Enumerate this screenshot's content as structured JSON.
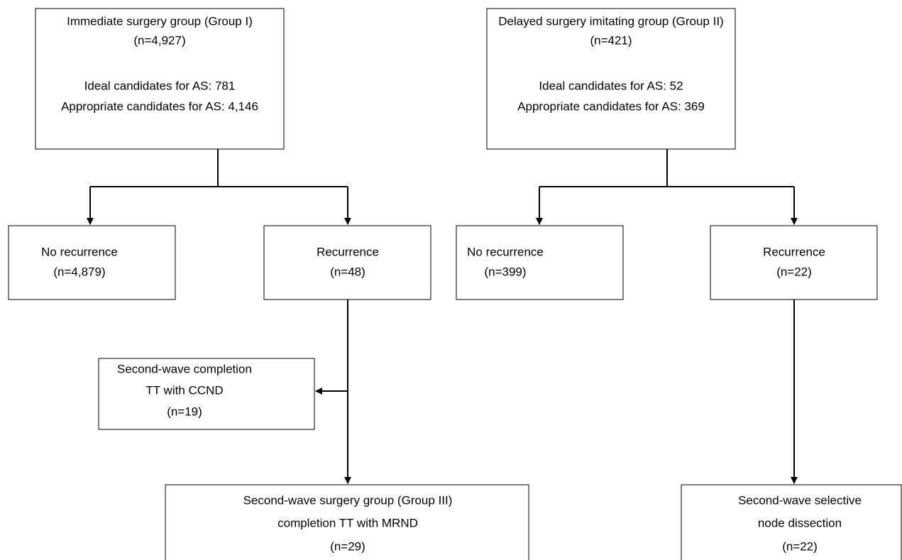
{
  "nodes": [
    {
      "lines": [
        "Immediate surgery group (Group I)",
        "(n=4,927)",
        "Ideal candidates for AS: 781",
        "Appropriate candidates for AS: 4,146"
      ]
    },
    {
      "lines": [
        "Delayed surgery imitating group (Group II)",
        "(n=421)",
        "Ideal candidates for AS: 52",
        "Appropriate candidates for AS: 369"
      ]
    },
    {
      "lines": [
        "No recurrence",
        "(n=4,879)"
      ]
    },
    {
      "lines": [
        "Recurrence",
        "(n=48)"
      ]
    },
    {
      "lines": [
        "No recurrence",
        "(n=399)"
      ]
    },
    {
      "lines": [
        "Recurrence",
        "(n=22)"
      ]
    },
    {
      "lines": [
        "Second-wave completion",
        "TT with CCND",
        "(n=19)"
      ]
    },
    {
      "lines": [
        "Second-wave surgery group (Group III)",
        "completion TT with MRND",
        "(n=29)"
      ]
    },
    {
      "lines": [
        "Second-wave selective",
        "node dissection",
        "(n=22)"
      ]
    }
  ]
}
